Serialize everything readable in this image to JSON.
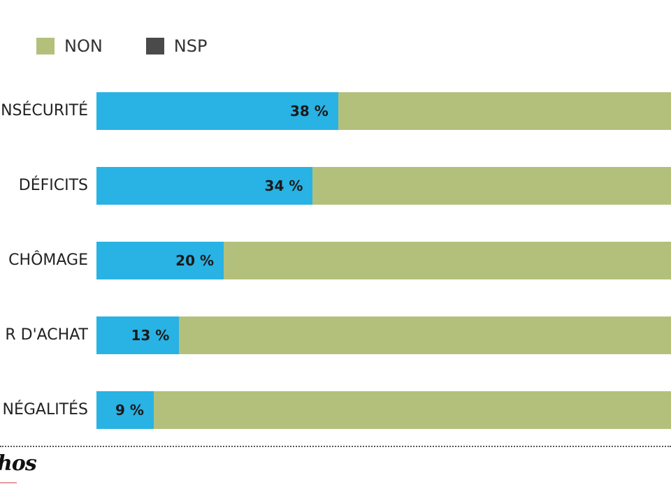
{
  "chart_data": {
    "type": "bar",
    "orientation": "horizontal",
    "stacked": true,
    "categories": [
      "NSÉCURITÉ",
      "DÉFICITS",
      "CHÔMAGE",
      "R D'ACHAT",
      "NÉGALITÉS"
    ],
    "series": [
      {
        "name": "",
        "color": "#29b2e4",
        "values": [
          38,
          34,
          20,
          13,
          9
        ],
        "labels": [
          "38 %",
          "34 %",
          "20 %",
          "13 %",
          "9 %"
        ]
      },
      {
        "name": "NON",
        "color": "#b3c07c",
        "values": [
          62,
          66,
          80,
          87,
          91
        ]
      },
      {
        "name": "NSP",
        "color": "#4a4a4a",
        "values": [
          0,
          0,
          0,
          0,
          0
        ]
      }
    ],
    "xlim": [
      0,
      100
    ],
    "legend": {
      "placement": "top",
      "entries": [
        {
          "label": "NON",
          "color": "#b3c07c"
        },
        {
          "label": "NSP",
          "color": "#4a4a4a"
        }
      ]
    },
    "grid": false
  },
  "footer": {
    "logo_text": "hos"
  }
}
